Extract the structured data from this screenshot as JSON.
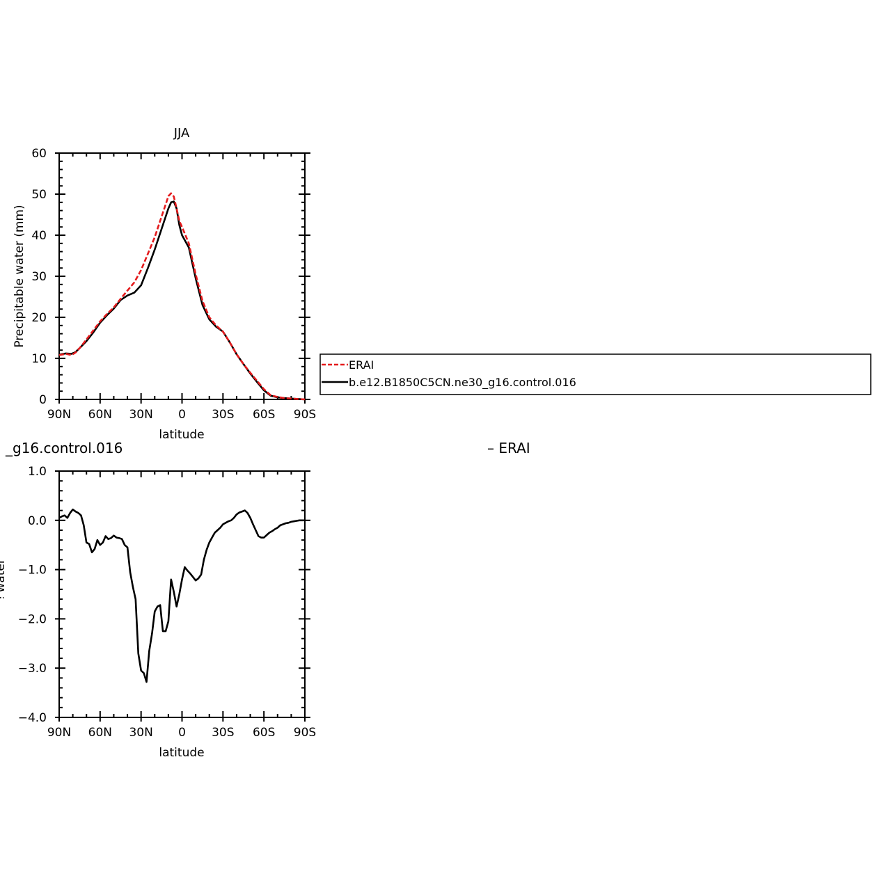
{
  "chart_data": [
    {
      "type": "line",
      "title": "JJA",
      "xlabel": "latitude",
      "ylabel": "Precipitable water (mm)",
      "xlim": [
        90,
        -90
      ],
      "ylim": [
        0,
        60
      ],
      "xticks": [
        90,
        60,
        30,
        0,
        -30,
        -60,
        -90
      ],
      "xtick_labels": [
        "90N",
        "60N",
        "30N",
        "0",
        "30S",
        "60S",
        "90S"
      ],
      "yticks": [
        0,
        10,
        20,
        30,
        40,
        50,
        60
      ],
      "ytick_labels": [
        "0",
        "10",
        "20",
        "30",
        "40",
        "50",
        "60"
      ],
      "legend_placement": "right",
      "series": [
        {
          "name": "ERAI",
          "color": "#e41a1c",
          "style": "dashed",
          "x": [
            90,
            85,
            81,
            78,
            75,
            70,
            65,
            60,
            55,
            50,
            45,
            40,
            35,
            30,
            25,
            20,
            15,
            12,
            10,
            8,
            6,
            4,
            2,
            0,
            -5,
            -10,
            -15,
            -20,
            -25,
            -30,
            -35,
            -40,
            -45,
            -50,
            -55,
            -60,
            -65,
            -70,
            -75,
            -80,
            -85,
            -90
          ],
          "y": [
            10.8,
            11.1,
            10.8,
            11.4,
            12.5,
            14.6,
            16.8,
            19.0,
            20.8,
            22.4,
            24.5,
            26.5,
            28.5,
            31.5,
            35.5,
            39.5,
            44.5,
            47.5,
            49.5,
            50.2,
            49.4,
            46.5,
            43.5,
            42.0,
            38.0,
            30.5,
            24.0,
            20.0,
            18.0,
            16.5,
            13.9,
            11.0,
            8.6,
            6.5,
            4.5,
            2.5,
            1.0,
            0.6,
            0.3,
            0.2,
            0.1,
            0.0
          ]
        },
        {
          "name": "b.e12.B1850C5CN.ne30_g16.control.016",
          "color": "#000000",
          "style": "solid",
          "x": [
            90,
            85,
            81,
            78,
            75,
            70,
            65,
            60,
            55,
            50,
            45,
            40,
            35,
            30,
            25,
            20,
            15,
            12,
            10,
            8,
            6,
            4,
            2,
            0,
            -5,
            -10,
            -15,
            -20,
            -25,
            -30,
            -35,
            -40,
            -45,
            -50,
            -55,
            -60,
            -65,
            -70,
            -75,
            -80,
            -85,
            -90
          ],
          "y": [
            10.9,
            11.2,
            11.1,
            11.5,
            12.5,
            14.2,
            16.3,
            18.7,
            20.5,
            22.1,
            24.2,
            25.3,
            26.0,
            27.8,
            32.0,
            36.5,
            41.5,
            44.5,
            46.5,
            48.0,
            48.2,
            46.5,
            42.5,
            40.0,
            37.0,
            29.5,
            23.0,
            19.5,
            17.7,
            16.5,
            13.9,
            11.0,
            8.6,
            6.3,
            4.2,
            2.2,
            0.9,
            0.5,
            0.3,
            0.2,
            0.1,
            0.0
          ]
        }
      ]
    },
    {
      "type": "line",
      "title": "_g16.control.016",
      "title_right": "– ERAI",
      "xlabel": "latitude",
      "ylabel": "Precipitable water (mm)",
      "xlim": [
        90,
        -90
      ],
      "ylim": [
        -4.0,
        1.0
      ],
      "xticks": [
        90,
        60,
        30,
        0,
        -30,
        -60,
        -90
      ],
      "xtick_labels": [
        "90N",
        "60N",
        "30N",
        "0",
        "30S",
        "60S",
        "90S"
      ],
      "yticks": [
        -4.0,
        -3.0,
        -2.0,
        -1.0,
        0.0,
        1.0
      ],
      "ytick_labels": [
        "−4.0",
        "−3.0",
        "−2.0",
        "−1.0",
        "0.0",
        "1.0"
      ],
      "series": [
        {
          "name": "",
          "color": "#000000",
          "style": "solid",
          "x": [
            90,
            88,
            86,
            84,
            82,
            80,
            78,
            76,
            74,
            72,
            70,
            68,
            66,
            64,
            62,
            60,
            58,
            56,
            54,
            52,
            50,
            48,
            46,
            44,
            42,
            40,
            38,
            36,
            34,
            32,
            30,
            28,
            26,
            24,
            22,
            20,
            18,
            16,
            14,
            12,
            10,
            8,
            6,
            4,
            2,
            0,
            -2,
            -4,
            -6,
            -8,
            -10,
            -12,
            -14,
            -16,
            -18,
            -20,
            -22,
            -24,
            -26,
            -28,
            -30,
            -32,
            -34,
            -36,
            -38,
            -40,
            -42,
            -44,
            -46,
            -48,
            -50,
            -52,
            -54,
            -56,
            -58,
            -60,
            -62,
            -64,
            -66,
            -68,
            -70,
            -72,
            -74,
            -76,
            -78,
            -80,
            -82,
            -84,
            -86,
            -88,
            -90
          ],
          "y": [
            0.05,
            0.08,
            0.1,
            0.05,
            0.15,
            0.22,
            0.18,
            0.15,
            0.1,
            -0.1,
            -0.45,
            -0.48,
            -0.65,
            -0.58,
            -0.4,
            -0.5,
            -0.45,
            -0.32,
            -0.38,
            -0.36,
            -0.31,
            -0.35,
            -0.36,
            -0.38,
            -0.5,
            -0.55,
            -1.05,
            -1.35,
            -1.6,
            -2.7,
            -3.05,
            -3.1,
            -3.28,
            -2.65,
            -2.3,
            -1.85,
            -1.75,
            -1.72,
            -2.25,
            -2.25,
            -2.05,
            -1.2,
            -1.45,
            -1.75,
            -1.5,
            -1.2,
            -0.95,
            -1.02,
            -1.08,
            -1.15,
            -1.22,
            -1.18,
            -1.1,
            -0.8,
            -0.6,
            -0.45,
            -0.35,
            -0.25,
            -0.2,
            -0.15,
            -0.08,
            -0.05,
            -0.02,
            0.0,
            0.05,
            0.12,
            0.16,
            0.18,
            0.2,
            0.15,
            0.05,
            -0.08,
            -0.2,
            -0.32,
            -0.35,
            -0.35,
            -0.3,
            -0.25,
            -0.22,
            -0.18,
            -0.15,
            -0.1,
            -0.08,
            -0.06,
            -0.05,
            -0.03,
            -0.02,
            -0.01,
            0.0,
            0.0,
            0.0
          ]
        }
      ]
    }
  ]
}
